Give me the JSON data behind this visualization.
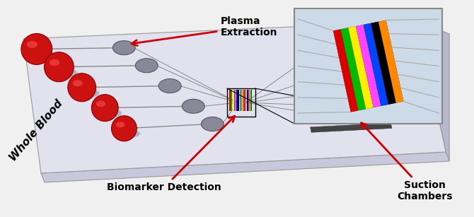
{
  "figsize": [
    6.7,
    3.07
  ],
  "dpi": 100,
  "background_color": "#f0f0f0",
  "chip_top_color": "#e2e2ee",
  "chip_front_color": "#c8c8dc",
  "chip_side_color": "#d0d0e4",
  "chip_edge_color": "#999999",
  "blood_color": "#cc1111",
  "blood_dark": "#880000",
  "blood_highlight": "#ff5555",
  "sep_color": "#888899",
  "sep_edge": "#555566",
  "channel_color": "#888888",
  "suction_color": "#444444",
  "arrow_color": "#cc0000",
  "inset_bg": "#cddae8",
  "inset_edge": "#888888",
  "detection_colors": [
    "#dd0000",
    "#00aa00",
    "#ffff00",
    "#ff00ff",
    "#0000dd",
    "#000000",
    "#00aaaa",
    "#ff8800",
    "#ff0000",
    "#888888",
    "#000088",
    "#ff4444",
    "#008800"
  ],
  "inset_stripe_colors": [
    "#dd0000",
    "#00bb00",
    "#ffee00",
    "#ff44ff",
    "#0044ff",
    "#000000",
    "#ff8800"
  ],
  "whole_blood_text": "Whole Blood",
  "plasma_text": "Plasma\nExtraction",
  "biomarker_text": "Biomarker Detection",
  "suction_text": "Suction\nChambers",
  "text_fontsize": 11,
  "label_fontsize": 10
}
